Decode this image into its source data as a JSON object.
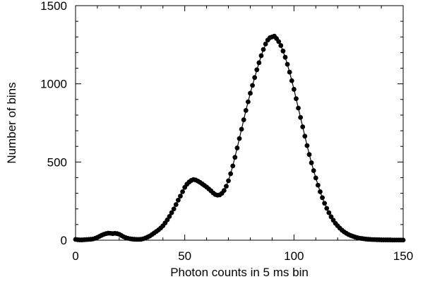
{
  "chart_data": {
    "type": "scatter",
    "xlabel": "Photon counts in 5 ms bin",
    "ylabel": "Number of bins",
    "xlim": [
      0,
      150
    ],
    "xticks": [
      0,
      50,
      100,
      150
    ],
    "xminorticks": [
      10,
      20,
      30,
      40,
      60,
      70,
      80,
      90,
      110,
      120,
      130,
      140
    ],
    "ylim": [
      0,
      1500
    ],
    "yticks": [
      0,
      500,
      1000,
      1500
    ],
    "yminorticks": [
      100,
      200,
      300,
      400,
      600,
      700,
      800,
      900,
      1100,
      1200,
      1300,
      1400
    ],
    "series": [
      {
        "kind": "markers",
        "color": "#000000",
        "x": [
          0,
          1,
          2,
          3,
          4,
          5,
          6,
          7,
          8,
          9,
          10,
          11,
          12,
          13,
          14,
          15,
          16,
          17,
          18,
          19,
          20,
          21,
          22,
          23,
          24,
          25,
          26,
          27,
          28,
          29,
          30,
          31,
          32,
          33,
          34,
          35,
          36,
          37,
          38,
          39,
          40,
          41,
          42,
          43,
          44,
          45,
          46,
          47,
          48,
          49,
          50,
          51,
          52,
          53,
          54,
          55,
          56,
          57,
          58,
          59,
          60,
          61,
          62,
          63,
          64,
          65,
          66,
          67,
          68,
          69,
          70,
          71,
          72,
          73,
          74,
          75,
          76,
          77,
          78,
          79,
          80,
          81,
          82,
          83,
          84,
          85,
          86,
          87,
          88,
          89,
          90,
          91,
          92,
          93,
          94,
          95,
          96,
          97,
          98,
          99,
          100,
          101,
          102,
          103,
          104,
          105,
          106,
          107,
          108,
          109,
          110,
          111,
          112,
          113,
          114,
          115,
          116,
          117,
          118,
          119,
          120,
          121,
          122,
          123,
          124,
          125,
          126,
          127,
          128,
          129,
          130,
          131,
          132,
          133,
          134,
          135,
          136,
          137,
          138,
          139,
          140,
          141,
          142,
          143,
          144,
          145,
          146,
          147,
          148,
          149,
          150
        ],
        "values": [
          5,
          3,
          2,
          2,
          3,
          4,
          5,
          6,
          8,
          12,
          18,
          25,
          32,
          38,
          42,
          45,
          44,
          42,
          44,
          42,
          38,
          30,
          22,
          16,
          12,
          9,
          7,
          6,
          5,
          5,
          6,
          9,
          14,
          20,
          27,
          36,
          46,
          56,
          66,
          78,
          92,
          110,
          130,
          152,
          176,
          200,
          228,
          256,
          282,
          310,
          338,
          358,
          372,
          382,
          388,
          385,
          378,
          370,
          360,
          350,
          340,
          328,
          316,
          302,
          292,
          288,
          290,
          300,
          318,
          345,
          380,
          425,
          475,
          530,
          590,
          650,
          710,
          770,
          830,
          885,
          940,
          990,
          1040,
          1090,
          1135,
          1180,
          1220,
          1255,
          1280,
          1295,
          1300,
          1305,
          1290,
          1270,
          1245,
          1210,
          1170,
          1125,
          1075,
          1020,
          965,
          905,
          845,
          785,
          725,
          665,
          605,
          548,
          495,
          445,
          398,
          352,
          310,
          272,
          236,
          204,
          176,
          150,
          128,
          108,
          92,
          77,
          64,
          53,
          44,
          36,
          30,
          25,
          20,
          16,
          13,
          11,
          9,
          7,
          6,
          5,
          4,
          4,
          3,
          3,
          2,
          2,
          2,
          2,
          2,
          1,
          1,
          1,
          1,
          1,
          1
        ]
      },
      {
        "kind": "line",
        "color": "#000000",
        "x": [
          0,
          2,
          4,
          6,
          8,
          10,
          12,
          14,
          16,
          18,
          20,
          22,
          24,
          26,
          28,
          30,
          32,
          34,
          36,
          38,
          40,
          42,
          44,
          46,
          48,
          50,
          52,
          54,
          56,
          58,
          60,
          62,
          64,
          66,
          68,
          70,
          72,
          74,
          76,
          78,
          80,
          82,
          84,
          86,
          88,
          90,
          92,
          94,
          96,
          98,
          100,
          102,
          104,
          106,
          108,
          110,
          112,
          114,
          116,
          118,
          120,
          122,
          124,
          126,
          128,
          130,
          132,
          134,
          136,
          138,
          140,
          142,
          144,
          146,
          148,
          150
        ],
        "values": [
          5,
          2,
          3,
          5,
          8,
          18,
          32,
          42,
          45,
          43,
          37,
          22,
          12,
          7,
          5,
          6,
          14,
          27,
          46,
          66,
          92,
          130,
          176,
          228,
          282,
          335,
          370,
          385,
          380,
          362,
          340,
          316,
          296,
          292,
          316,
          380,
          475,
          590,
          710,
          830,
          940,
          1040,
          1135,
          1220,
          1280,
          1300,
          1292,
          1245,
          1170,
          1075,
          965,
          845,
          725,
          605,
          495,
          398,
          310,
          236,
          176,
          128,
          92,
          64,
          44,
          30,
          20,
          13,
          9,
          6,
          4,
          3,
          2,
          2,
          2,
          1,
          1,
          1
        ]
      }
    ]
  }
}
